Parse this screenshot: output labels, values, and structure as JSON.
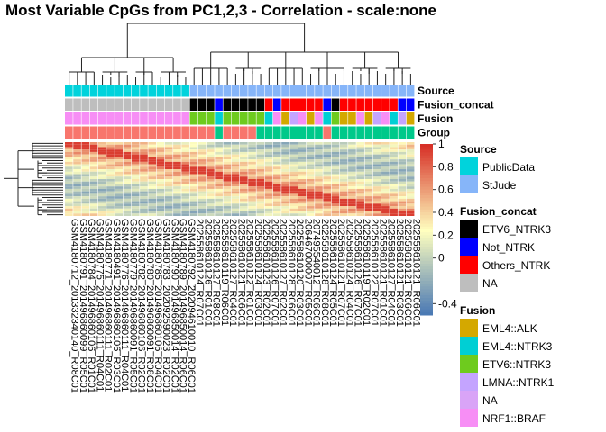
{
  "chart_data": {
    "type": "heatmap",
    "title": "Most Variable CpGs from PC1,2,3 - Correlation - scale:none",
    "columns": [
      "GSM4180712_201332340140_R08C01",
      "GSM4180791_201496860099_R05C01",
      "GSM4180784_201496860106_R01C01",
      "GSM4180775_201496860111_R04C01",
      "GSM4180771_201496860111_R02C01",
      "GSM4180491_201496860106_R03C01",
      "GSM4180776_201496860111_R04C01",
      "GSM4180779_201496860091_R05C01",
      "GSM4180782_201496860106_R02C01",
      "GSM4180780_201496860091_R08C01",
      "GSM4180785_201496860106_R04C01",
      "GSM4180783_202092590023_R02C01",
      "GSM4180790_201496850014_R02C01",
      "GSM4180789_201496850014_R06C01",
      "GSM4180792_202094610010_R06C01",
      "202558610124_R07C01",
      "202558610126_R01C01",
      "202558610127_R08C01",
      "202558610119_R06C01",
      "202558610127_R04C01",
      "202558610121_R06C01",
      "202558610122_R01C01",
      "202558610124_R03C01",
      "202558610123_R02C01",
      "202558610126_R07C01",
      "202558610127_R02C01",
      "202558610128_R06C01",
      "202558610120_R03C01",
      "206467000007_R05C01",
      "207495540012_R06C01",
      "202558610128_R08C01",
      "202558610124_R05C01",
      "202558610121_R07C01",
      "202558610124_R04C01",
      "202558610126_R07C01",
      "202558610119_R02C01",
      "202558610122_R07C01",
      "202558610121_R01C01",
      "202558610127_R04C01",
      "202558610121_R03C01",
      "202558610121_R06C01",
      "202558610121_R06C01"
    ],
    "annotations": [
      {
        "name": "Source",
        "values": [
          "PublicData",
          "PublicData",
          "PublicData",
          "PublicData",
          "PublicData",
          "PublicData",
          "PublicData",
          "PublicData",
          "PublicData",
          "PublicData",
          "PublicData",
          "PublicData",
          "PublicData",
          "PublicData",
          "PublicData",
          "StJude",
          "StJude",
          "StJude",
          "StJude",
          "StJude",
          "StJude",
          "StJude",
          "StJude",
          "StJude",
          "StJude",
          "StJude",
          "StJude",
          "StJude",
          "StJude",
          "StJude",
          "StJude",
          "StJude",
          "StJude",
          "StJude",
          "StJude",
          "StJude",
          "StJude",
          "StJude",
          "StJude",
          "StJude",
          "StJude",
          "StJude"
        ]
      },
      {
        "name": "Fusion_concat",
        "values": [
          "NA",
          "NA",
          "NA",
          "NA",
          "NA",
          "NA",
          "NA",
          "NA",
          "NA",
          "NA",
          "NA",
          "NA",
          "NA",
          "NA",
          "NA",
          "ETV6_NTRK3",
          "ETV6_NTRK3",
          "ETV6_NTRK3",
          "Not_NTRK",
          "ETV6_NTRK3",
          "ETV6_NTRK3",
          "ETV6_NTRK3",
          "ETV6_NTRK3",
          "ETV6_NTRK3",
          "Others_NTRK",
          "Not_NTRK",
          "Others_NTRK",
          "Others_NTRK",
          "Others_NTRK",
          "Others_NTRK",
          "Others_NTRK",
          "Not_NTRK",
          "ETV6_NTRK3",
          "Others_NTRK",
          "Others_NTRK",
          "Others_NTRK",
          "Others_NTRK",
          "Others_NTRK",
          "Others_NTRK",
          "Others_NTRK",
          "Not_NTRK",
          "Not_NTRK"
        ]
      },
      {
        "name": "Fusion",
        "values": [
          "NRF1::BRAF",
          "NRF1::BRAF",
          "NRF1::BRAF",
          "NRF1::BRAF",
          "NRF1::BRAF",
          "NRF1::BRAF",
          "NRF1::BRAF",
          "NRF1::BRAF",
          "NRF1::BRAF",
          "NRF1::BRAF",
          "NRF1::BRAF",
          "NRF1::BRAF",
          "NRF1::BRAF",
          "NRF1::BRAF",
          "NRF1::BRAF",
          "ETV6::NTRK3",
          "ETV6::NTRK3",
          "ETV6::NTRK3",
          "EML4::NTRK3",
          "ETV6::NTRK3",
          "ETV6::NTRK3",
          "ETV6::NTRK3",
          "ETV6::NTRK3",
          "ETV6::NTRK3",
          "EML4::NTRK3",
          "NRF1::BRAF",
          "EML4::ALK",
          "LMNA::NTRK1",
          "NRF1::BRAF",
          "EML4::ALK",
          "NRF1::BRAF",
          "EML4::NTRK3",
          "ETV6::NTRK3",
          "EML4::ALK",
          "EML4::ALK",
          "NRF1::BRAF",
          "EML4::ALK",
          "LMNA::NTRK1",
          "NRF1::BRAF",
          "EML4::NTRK3",
          "LMNA::NTRK1",
          "EML4::ALK"
        ]
      },
      {
        "name": "Group",
        "values": [
          "g1",
          "g1",
          "g1",
          "g1",
          "g1",
          "g1",
          "g1",
          "g1",
          "g1",
          "g1",
          "g1",
          "g1",
          "g1",
          "g1",
          "g1",
          "g1",
          "g1",
          "g1",
          "g2",
          "g1",
          "g1",
          "g1",
          "g1",
          "g2",
          "g2",
          "g2",
          "g2",
          "g2",
          "g2",
          "g2",
          "g2",
          "g1",
          "g2",
          "g2",
          "g2",
          "g2",
          "g2",
          "g2",
          "g2",
          "g2",
          "g2",
          "g2"
        ]
      }
    ],
    "annotation_colors": {
      "Source": {
        "PublicData": "#00d3dc",
        "StJude": "#86b5f9"
      },
      "Fusion_concat": {
        "ETV6_NTRK3": "#000000",
        "Not_NTRK": "#0000ff",
        "Others_NTRK": "#ff0000",
        "NA": "#bebebe"
      },
      "Fusion": {
        "EML4::ALK": "#d4a800",
        "EML4::NTRK3": "#00cfd4",
        "ETV6::NTRK3": "#6ecb1e",
        "LMNA::NTRK1": "#c4a4ff",
        "NA": "#d9a4f7",
        "NRF1::BRAF": "#f78ef5"
      },
      "Group": {
        "g1": "#f8766d",
        "g2": "#00c98a"
      }
    },
    "colorbar": {
      "min": -0.5,
      "max": 1,
      "ticks": [
        -0.4,
        0,
        0.2,
        0.4,
        0.6,
        0.8,
        1
      ],
      "colors": [
        "#4575b4",
        "#ffffbf",
        "#d73027"
      ]
    },
    "rows_visible": 30
  },
  "legends": [
    {
      "title": "Source",
      "items": [
        {
          "label": "PublicData",
          "color": "#00d3dc"
        },
        {
          "label": "StJude",
          "color": "#86b5f9"
        }
      ]
    },
    {
      "title": "Fusion_concat",
      "items": [
        {
          "label": "ETV6_NTRK3",
          "color": "#000000"
        },
        {
          "label": "Not_NTRK",
          "color": "#0000ff"
        },
        {
          "label": "Others_NTRK",
          "color": "#ff0000"
        },
        {
          "label": "NA",
          "color": "#bebebe"
        }
      ]
    },
    {
      "title": "Fusion",
      "items": [
        {
          "label": "EML4::ALK",
          "color": "#d4a800"
        },
        {
          "label": "EML4::NTRK3",
          "color": "#00cfd4"
        },
        {
          "label": "ETV6::NTRK3",
          "color": "#6ecb1e"
        },
        {
          "label": "LMNA::NTRK1",
          "color": "#c4a4ff"
        },
        {
          "label": "NA",
          "color": "#d9a4f7"
        },
        {
          "label": "NRF1::BRAF",
          "color": "#f78ef5"
        }
      ]
    }
  ]
}
